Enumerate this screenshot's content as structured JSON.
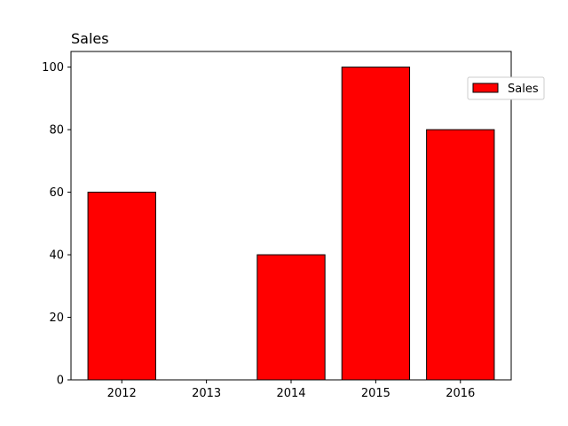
{
  "chart_data": {
    "type": "bar",
    "title": "Sales",
    "xlabel": "",
    "ylabel": "",
    "categories": [
      "2012",
      "2013",
      "2014",
      "2015",
      "2016"
    ],
    "series": [
      {
        "name": "Sales",
        "values": [
          60,
          0,
          40,
          100,
          80
        ],
        "color": "#ff0000",
        "edgecolor": "#000000"
      }
    ],
    "ylim": [
      0,
      105
    ],
    "yticks": [
      0,
      20,
      40,
      60,
      80,
      100
    ],
    "grid": false,
    "legend": {
      "placement": "upper-right, outside axes",
      "entries": [
        "Sales"
      ]
    }
  }
}
